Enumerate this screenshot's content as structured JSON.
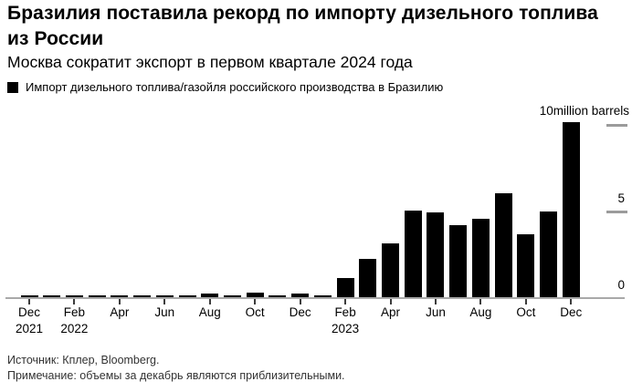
{
  "header": {
    "title": "Бразилия поставила рекорд по импорту дизельного топлива из России",
    "subtitle": "Москва сократит экспорт в первом квартале 2024 года"
  },
  "legend": {
    "label": "Импорт дизельного топлива/газойля российского производства в Бразилию",
    "marker_color": "#000000"
  },
  "chart_data": {
    "type": "bar",
    "title": "Импорт дизельного топлива/газойля российского производства в Бразилию",
    "unit_label": "million barrels",
    "ylabel": "million barrels",
    "ylim": [
      0,
      10
    ],
    "yticks": [
      0,
      5,
      10
    ],
    "ytick_top_label": "10",
    "ytick_mid_label": "5",
    "ytick_zero_label": "0",
    "grid": "right-dashes-only",
    "legend_position": "top-left",
    "bar_color": "#000000",
    "axis_color": "#a9a9a9",
    "x": [
      "Dec 2021",
      "Jan 2022",
      "Feb 2022",
      "Mar 2022",
      "Apr 2022",
      "May 2022",
      "Jun 2022",
      "Jul 2022",
      "Aug 2022",
      "Sep 2022",
      "Oct 2022",
      "Nov 2022",
      "Dec 2022",
      "Jan 2023",
      "Feb 2023",
      "Mar 2023",
      "Apr 2023",
      "May 2023",
      "Jun 2023",
      "Jul 2023",
      "Aug 2023",
      "Sep 2023",
      "Oct 2023",
      "Nov 2023",
      "Dec 2023"
    ],
    "values": [
      0.05,
      0.05,
      0.05,
      0.05,
      0.05,
      0.05,
      0.05,
      0.05,
      0.2,
      0.05,
      0.25,
      0.05,
      0.2,
      0.1,
      1.1,
      2.2,
      3.1,
      5.0,
      4.9,
      4.15,
      4.55,
      6.0,
      3.65,
      4.95,
      10.1
    ],
    "xtick_labels": [
      {
        "index": 0,
        "month": "Dec",
        "year": "2021"
      },
      {
        "index": 2,
        "month": "Feb",
        "year": "2022"
      },
      {
        "index": 4,
        "month": "Apr",
        "year": ""
      },
      {
        "index": 6,
        "month": "Jun",
        "year": ""
      },
      {
        "index": 8,
        "month": "Aug",
        "year": ""
      },
      {
        "index": 10,
        "month": "Oct",
        "year": ""
      },
      {
        "index": 12,
        "month": "Dec",
        "year": ""
      },
      {
        "index": 14,
        "month": "Feb",
        "year": "2023"
      },
      {
        "index": 16,
        "month": "Apr",
        "year": ""
      },
      {
        "index": 18,
        "month": "Jun",
        "year": ""
      },
      {
        "index": 20,
        "month": "Aug",
        "year": ""
      },
      {
        "index": 22,
        "month": "Oct",
        "year": ""
      },
      {
        "index": 24,
        "month": "Dec",
        "year": ""
      }
    ]
  },
  "footer": {
    "source": "Источник: Кплер, Bloomberg.",
    "note": "Примечание: объемы за декабрь являются приблизительными."
  }
}
